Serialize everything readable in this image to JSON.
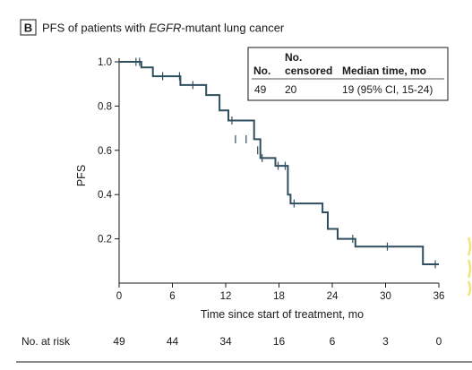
{
  "panel": {
    "letter": "B",
    "title_prefix": "PFS of patients with ",
    "title_italic": "EGFR",
    "title_suffix": "-mutant lung cancer"
  },
  "legend": {
    "headers": {
      "n": "No.",
      "censored_line1": "No.",
      "censored_line2": "censored",
      "median": "Median time, mo"
    },
    "values": {
      "n": "49",
      "censored": "20",
      "median": "19 (95% CI, 15-24)"
    }
  },
  "risk_table": {
    "label": "No. at risk",
    "times": [
      0,
      6,
      12,
      18,
      24,
      30,
      36
    ],
    "counts": [
      "49",
      "44",
      "34",
      "16",
      "6",
      "3",
      "0"
    ]
  },
  "colors": {
    "curve": "#2f4f5f",
    "axis": "#1a1a1a",
    "legend_border": "#1a1a1a",
    "accent_edge": "#f5e27a"
  },
  "chart_data": {
    "type": "line",
    "title": "PFS of patients with EGFR-mutant lung cancer",
    "xlabel": "Time since start of treatment, mo",
    "ylabel": "PFS",
    "xlim": [
      0,
      36
    ],
    "ylim": [
      0,
      1
    ],
    "xticks": [
      0,
      6,
      12,
      18,
      24,
      30,
      36
    ],
    "xtick_labels": [
      "0",
      "6",
      "12",
      "18",
      "24",
      "30",
      "36"
    ],
    "yticks": [
      0.2,
      0.4,
      0.6,
      0.8,
      1.0
    ],
    "ytick_labels": [
      "0.2",
      "0.4",
      "0.6",
      "0.8",
      "1.0"
    ],
    "grid": false,
    "series": [
      {
        "style": "step",
        "x": [
          0,
          2.5,
          3.8,
          6.9,
          9.8,
          11.3,
          12.3,
          15.2,
          15.9,
          17.6,
          19.0,
          19.3,
          22.9,
          23.5,
          24.6,
          26.6,
          34.2,
          36.0
        ],
        "y": [
          1.0,
          0.975,
          0.935,
          0.895,
          0.85,
          0.78,
          0.735,
          0.65,
          0.565,
          0.53,
          0.4,
          0.36,
          0.32,
          0.245,
          0.2,
          0.165,
          0.085,
          0.085
        ]
      }
    ],
    "censor_marks": {
      "x": [
        1.9,
        2.3,
        4.9,
        6.8,
        8.3,
        12.7,
        13.1,
        14.3,
        15.6,
        16.1,
        17.9,
        18.7,
        19.7,
        26.3,
        30.2,
        35.6
      ],
      "y": [
        1.0,
        1.0,
        0.935,
        0.935,
        0.895,
        0.735,
        0.65,
        0.65,
        0.6,
        0.565,
        0.53,
        0.53,
        0.36,
        0.2,
        0.165,
        0.085
      ]
    }
  }
}
